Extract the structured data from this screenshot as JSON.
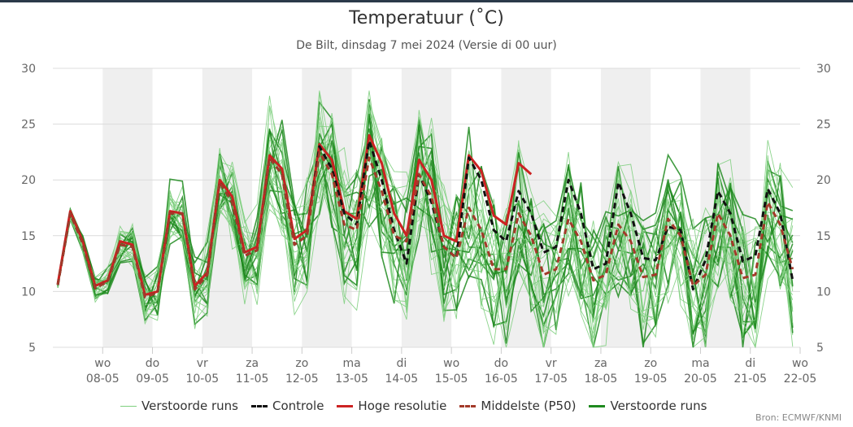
{
  "chart_data": {
    "type": "line",
    "title": "Temperatuur (˚C)",
    "subtitle": "De Bilt, dinsdag 7 mei 2024 (Versie di 00 uur)",
    "ylim": [
      5,
      30
    ],
    "yticks": [
      5,
      10,
      15,
      20,
      25,
      30
    ],
    "x_range_days": [
      0,
      15
    ],
    "date_ticks": [
      {
        "day": "wo",
        "date": "08-05"
      },
      {
        "day": "do",
        "date": "09-05"
      },
      {
        "day": "vr",
        "date": "10-05"
      },
      {
        "day": "za",
        "date": "11-05"
      },
      {
        "day": "zo",
        "date": "12-05"
      },
      {
        "day": "ma",
        "date": "13-05"
      },
      {
        "day": "di",
        "date": "14-05"
      },
      {
        "day": "wo",
        "date": "15-05"
      },
      {
        "day": "do",
        "date": "16-05"
      },
      {
        "day": "vr",
        "date": "17-05"
      },
      {
        "day": "za",
        "date": "18-05"
      },
      {
        "day": "zo",
        "date": "19-05"
      },
      {
        "day": "ma",
        "date": "20-05"
      },
      {
        "day": "di",
        "date": "21-05"
      },
      {
        "day": "wo",
        "date": "22-05"
      }
    ],
    "x_step_days": 0.25,
    "series": [
      {
        "name": "Hoge resolutie",
        "color": "#cc2222",
        "style": "solid",
        "values": [
          10.7,
          17.2,
          14.5,
          10.5,
          11.0,
          14.5,
          14.2,
          9.7,
          10.0,
          17.2,
          17.0,
          10.5,
          11.7,
          20.0,
          18.5,
          13.5,
          14.0,
          22.2,
          21.0,
          14.7,
          15.5,
          23.2,
          21.8,
          17.2,
          16.5,
          24.0,
          21.5,
          17.0,
          15.0,
          21.8,
          20.0,
          15.0,
          14.5,
          22.2,
          20.8,
          16.8,
          16.0,
          21.5,
          20.5
        ]
      },
      {
        "name": "Controle",
        "color": "#111111",
        "style": "dashed",
        "values": [
          10.6,
          17.0,
          14.3,
          10.3,
          10.9,
          14.2,
          14.0,
          9.5,
          9.9,
          17.0,
          17.0,
          10.2,
          11.5,
          19.8,
          18.0,
          13.2,
          13.7,
          22.0,
          20.5,
          14.2,
          15.0,
          23.0,
          21.0,
          17.0,
          16.0,
          23.5,
          20.0,
          15.5,
          12.5,
          20.5,
          18.0,
          14.0,
          13.0,
          22.0,
          20.0,
          15.5,
          14.5,
          19.0,
          17.0,
          13.5,
          14.0,
          20.0,
          17.0,
          12.0,
          12.5,
          19.8,
          17.0,
          13.0,
          12.8,
          15.8,
          15.5,
          10.2,
          12.8,
          19.0,
          17.0,
          12.7,
          13.2,
          19.2,
          17.0,
          11.0
        ]
      },
      {
        "name": "Middelste (P50)",
        "color": "#a33a2a",
        "style": "dashed",
        "values": [
          10.6,
          17.0,
          14.3,
          10.3,
          10.9,
          14.2,
          14.0,
          9.5,
          9.9,
          17.0,
          17.0,
          10.2,
          11.5,
          19.8,
          18.0,
          13.2,
          13.7,
          22.0,
          20.5,
          14.2,
          15.0,
          22.5,
          20.5,
          16.0,
          15.5,
          22.0,
          19.0,
          15.0,
          14.5,
          20.5,
          18.5,
          14.0,
          13.0,
          17.5,
          15.5,
          12.0,
          12.0,
          17.0,
          15.0,
          11.5,
          12.0,
          16.5,
          14.5,
          11.0,
          11.5,
          16.0,
          14.5,
          11.3,
          11.5,
          16.5,
          15.0,
          10.5,
          11.5,
          17.0,
          15.0,
          11.2,
          11.5,
          18.0,
          16.0,
          12.0
        ]
      }
    ],
    "ensemble": {
      "name": "Verstoorde runs",
      "color": "#2e9e2e",
      "members": 30
    },
    "background_bands": "alternating grey day columns"
  },
  "legend": [
    {
      "label": "Verstoorde runs",
      "style": "thin-light-green"
    },
    {
      "label": "Controle",
      "style": "dashed-black"
    },
    {
      "label": "Hoge resolutie",
      "style": "solid-red"
    },
    {
      "label": "Middelste (P50)",
      "style": "dashed-darkred"
    },
    {
      "label": "Verstoorde runs",
      "style": "thick-green"
    }
  ],
  "source": "Bron: ECMWF/KNMI"
}
